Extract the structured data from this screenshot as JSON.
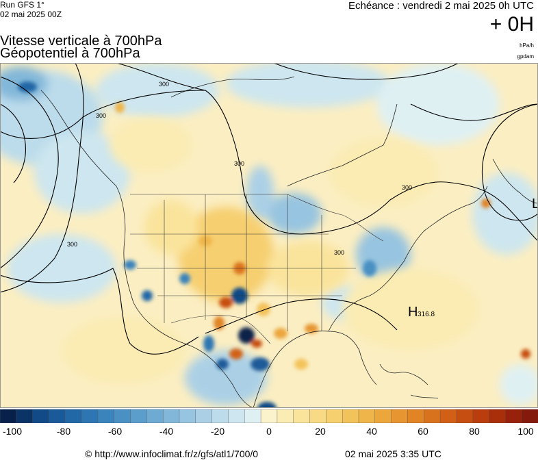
{
  "header": {
    "run_label": "Run GFS 1°",
    "run_date": "02 mai 2025 00Z",
    "valid_label": "Echéance : vendredi 2 mai 2025 0h UTC",
    "lead_time": "+ 0H",
    "title_line1": "Vitesse verticale à 700hPa",
    "title_line2": "Géopotentiel à 700hPa",
    "unit_shading": "hPa/h",
    "unit_contour": "gpdam"
  },
  "map": {
    "region": "Amérique du Nord",
    "contour_labels": [
      "300",
      "300",
      "300",
      "300",
      "300",
      "300"
    ],
    "pressure_centers": [
      {
        "type": "high",
        "letter": "H",
        "value": "316.8"
      },
      {
        "type": "low",
        "letter": "L",
        "value": ""
      }
    ]
  },
  "legend": {
    "ticks": [
      "-100",
      "-80",
      "-60",
      "-40",
      "-20",
      "0",
      "20",
      "40",
      "60",
      "80",
      "100"
    ],
    "colors": [
      "#08214a",
      "#0c3366",
      "#114a86",
      "#1a5a98",
      "#2368a6",
      "#2e76b1",
      "#3a83bb",
      "#4a90c3",
      "#5b9dcb",
      "#6eaad2",
      "#82b7d9",
      "#97c4e0",
      "#abd0e6",
      "#bcdceb",
      "#cde6ef",
      "#dff0f3",
      "#fbf3cc",
      "#fbecb4",
      "#fae49c",
      "#f8da85",
      "#f6cf6f",
      "#f3c35b",
      "#efb54a",
      "#eba63c",
      "#e69530",
      "#e08426",
      "#d9721d",
      "#d16016",
      "#c64e11",
      "#b93d0d",
      "#a92e0a",
      "#97210a",
      "#841a0b"
    ]
  },
  "footer": {
    "url": "© http://www.infoclimat.fr/z/gfs/atl1/700/0",
    "generated": "02 mai 2025  3:35 UTC"
  }
}
